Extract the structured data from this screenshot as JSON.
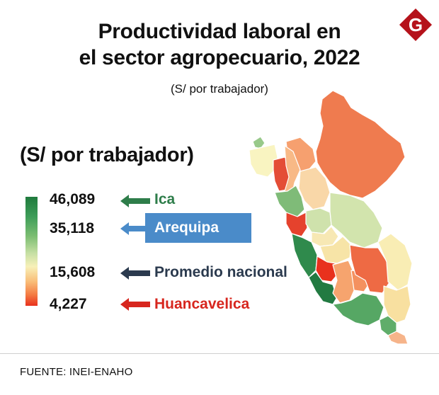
{
  "title": "Productividad laboral en\nel sector agropecuario, 2022",
  "subtitle": "(S/ por trabajador)",
  "brand": {
    "logo_letter": "G",
    "color": "#b5121b"
  },
  "legend": {
    "title": "(S/ por trabajador)",
    "scale_colors": [
      "#1f7a3d",
      "#3d9d58",
      "#7bbd71",
      "#c7e0a4",
      "#f7f0b8",
      "#f9bc77",
      "#f47a42",
      "#e8311d"
    ],
    "entries": [
      {
        "value": "46,089",
        "label": "Ica",
        "color": "#2e7d4a",
        "arrow_color": "#2e7d4a"
      },
      {
        "value": "35,118",
        "label": "Arequipa",
        "color": "#ffffff",
        "arrow_color": "#4a8bc9",
        "box_color": "#4a8bc9"
      },
      {
        "value": "15,608",
        "label": "Promedio nacional",
        "color": "#2b3a4e",
        "arrow_color": "#2b3a4e"
      },
      {
        "value": "4,227",
        "label": "Huancavelica",
        "color": "#d7261e",
        "arrow_color": "#d7261e"
      }
    ]
  },
  "map": {
    "name": "Perú por departamentos",
    "colors": {
      "loreto": "#ef7b4f",
      "amazonas": "#f6a06f",
      "tumbes": "#98c98a",
      "piura": "#f9f4c1",
      "lambayeque": "#e44d36",
      "cajamarca": "#f8b986",
      "san_martin": "#f9d7a8",
      "la_libertad": "#7fbb78",
      "ancash": "#e5422d",
      "huanuco": "#cfe2ac",
      "pasco": "#f7e8b4",
      "ucayali": "#d2e4ad",
      "lima": "#2f8a4c",
      "junin": "#f7e4a7",
      "huancavelica": "#e8311d",
      "ica": "#227a41",
      "ayacucho": "#f6a46e",
      "apurimac": "#f4915f",
      "cusco": "#ee6a44",
      "madre_de_dios": "#f9edb4",
      "arequipa": "#56a764",
      "puno": "#f8e0a0",
      "moquegua": "#60ad6a",
      "tacna": "#f6b48a"
    }
  },
  "source": "FUENTE: INEI-ENAHO"
}
